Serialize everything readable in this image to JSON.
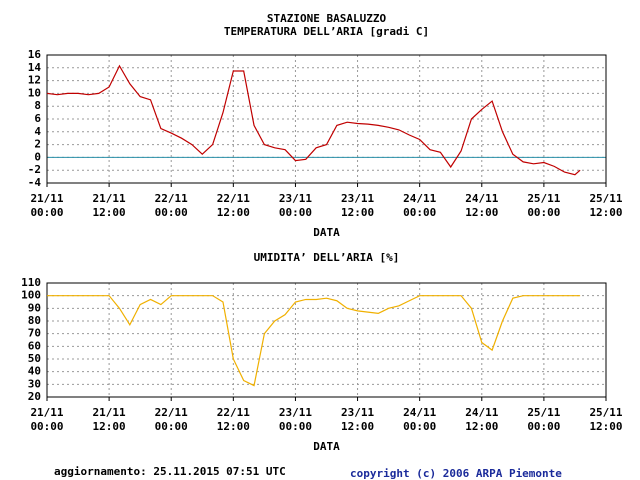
{
  "chart_data": [
    {
      "type": "line",
      "title": "STAZIONE BASALUZZO",
      "subtitle": "TEMPERATURA DELL’ARIA [gradi C]",
      "x_label": "DATA",
      "x": [
        "21/11 00:00",
        "21/11 02:00",
        "21/11 04:00",
        "21/11 06:00",
        "21/11 08:00",
        "21/11 10:00",
        "21/11 12:00",
        "21/11 14:00",
        "21/11 16:00",
        "21/11 18:00",
        "21/11 20:00",
        "21/11 22:00",
        "22/11 00:00",
        "22/11 02:00",
        "22/11 04:00",
        "22/11 06:00",
        "22/11 08:00",
        "22/11 10:00",
        "22/11 12:00",
        "22/11 14:00",
        "22/11 16:00",
        "22/11 18:00",
        "22/11 20:00",
        "22/11 22:00",
        "23/11 00:00",
        "23/11 02:00",
        "23/11 04:00",
        "23/11 06:00",
        "23/11 08:00",
        "23/11 10:00",
        "23/11 12:00",
        "23/11 14:00",
        "23/11 16:00",
        "23/11 18:00",
        "23/11 20:00",
        "23/11 22:00",
        "24/11 00:00",
        "24/11 02:00",
        "24/11 04:00",
        "24/11 06:00",
        "24/11 08:00",
        "24/11 10:00",
        "24/11 12:00",
        "24/11 14:00",
        "24/11 16:00",
        "24/11 18:00",
        "24/11 20:00",
        "24/11 22:00",
        "25/11 00:00",
        "25/11 02:00",
        "25/11 04:00",
        "25/11 06:00",
        "25/11 07:00"
      ],
      "series": [
        {
          "name": "TEMPERATURA DELL’ARIA",
          "color": "#c00000",
          "values": [
            10,
            9.8,
            10,
            10,
            9.8,
            10,
            11,
            14.3,
            11.5,
            9.5,
            9,
            4.5,
            3.8,
            3,
            2,
            0.5,
            2,
            7,
            13.5,
            13.5,
            5,
            2,
            1.5,
            1.2,
            -0.5,
            -0.3,
            1.5,
            2,
            5,
            5.5,
            5.3,
            5.2,
            5,
            4.7,
            4.3,
            3.5,
            2.8,
            1.2,
            0.8,
            -1.5,
            1,
            6,
            7.5,
            8.8,
            4,
            0.5,
            -0.7,
            -1,
            -0.8,
            -1.4,
            -2.3,
            -2.7,
            -2
          ]
        }
      ],
      "ylim": [
        -4,
        16
      ],
      "yticks": [
        -4,
        -2,
        0,
        2,
        4,
        6,
        8,
        10,
        12,
        14,
        16
      ],
      "xlim": [
        "21/11 00:00",
        "25/11 12:00"
      ],
      "xticks": [
        {
          "value": "21/11 00:00",
          "label": "21/11\n00:00"
        },
        {
          "value": "21/11 12:00",
          "label": "21/11\n12:00"
        },
        {
          "value": "22/11 00:00",
          "label": "22/11\n00:00"
        },
        {
          "value": "22/11 12:00",
          "label": "22/11\n12:00"
        },
        {
          "value": "23/11 00:00",
          "label": "23/11\n00:00"
        },
        {
          "value": "23/11 12:00",
          "label": "23/11\n12:00"
        },
        {
          "value": "24/11 00:00",
          "label": "24/11\n00:00"
        },
        {
          "value": "24/11 12:00",
          "label": "24/11\n12:00"
        },
        {
          "value": "25/11 00:00",
          "label": "25/11\n00:00"
        },
        {
          "value": "25/11 12:00",
          "label": "25/11\n12:00"
        }
      ],
      "grid": true,
      "reference_line": {
        "value": 0,
        "color": "#2a8fa8"
      }
    },
    {
      "type": "line",
      "title": "UMIDITA’ DELL’ARIA [%]",
      "x_label": "DATA",
      "x": [
        "21/11 00:00",
        "21/11 02:00",
        "21/11 04:00",
        "21/11 06:00",
        "21/11 08:00",
        "21/11 10:00",
        "21/11 12:00",
        "21/11 14:00",
        "21/11 16:00",
        "21/11 18:00",
        "21/11 20:00",
        "21/11 22:00",
        "22/11 00:00",
        "22/11 02:00",
        "22/11 04:00",
        "22/11 06:00",
        "22/11 08:00",
        "22/11 10:00",
        "22/11 12:00",
        "22/11 14:00",
        "22/11 16:00",
        "22/11 18:00",
        "22/11 20:00",
        "22/11 22:00",
        "23/11 00:00",
        "23/11 02:00",
        "23/11 04:00",
        "23/11 06:00",
        "23/11 08:00",
        "23/11 10:00",
        "23/11 12:00",
        "23/11 14:00",
        "23/11 16:00",
        "23/11 18:00",
        "23/11 20:00",
        "23/11 22:00",
        "24/11 00:00",
        "24/11 02:00",
        "24/11 04:00",
        "24/11 06:00",
        "24/11 08:00",
        "24/11 10:00",
        "24/11 12:00",
        "24/11 14:00",
        "24/11 16:00",
        "24/11 18:00",
        "24/11 20:00",
        "24/11 22:00",
        "25/11 00:00",
        "25/11 02:00",
        "25/11 04:00",
        "25/11 06:00",
        "25/11 07:00"
      ],
      "series": [
        {
          "name": "UMIDITA’ DELL’ARIA",
          "color": "#f0b000",
          "values": [
            100,
            100,
            100,
            100,
            100,
            100,
            100,
            90,
            77,
            93,
            97,
            93,
            100,
            100,
            100,
            100,
            100,
            95,
            50,
            33,
            29,
            70,
            80,
            85,
            95,
            97,
            97,
            98,
            96,
            90,
            88,
            87,
            86,
            90,
            92,
            96,
            100,
            100,
            100,
            100,
            100,
            90,
            63,
            57,
            80,
            98,
            100,
            100,
            100,
            100,
            100,
            100,
            100
          ]
        }
      ],
      "ylim": [
        20,
        110
      ],
      "yticks": [
        20,
        30,
        40,
        50,
        60,
        70,
        80,
        90,
        100,
        110
      ],
      "xlim": [
        "21/11 00:00",
        "25/11 12:00"
      ],
      "xticks": [
        {
          "value": "21/11 00:00",
          "label": "21/11\n00:00"
        },
        {
          "value": "21/11 12:00",
          "label": "21/11\n12:00"
        },
        {
          "value": "22/11 00:00",
          "label": "22/11\n00:00"
        },
        {
          "value": "22/11 12:00",
          "label": "22/11\n12:00"
        },
        {
          "value": "23/11 00:00",
          "label": "23/11\n00:00"
        },
        {
          "value": "23/11 12:00",
          "label": "23/11\n12:00"
        },
        {
          "value": "24/11 00:00",
          "label": "24/11\n00:00"
        },
        {
          "value": "24/11 12:00",
          "label": "24/11\n12:00"
        },
        {
          "value": "25/11 00:00",
          "label": "25/11\n00:00"
        },
        {
          "value": "25/11 12:00",
          "label": "25/11\n12:00"
        }
      ],
      "grid": true
    }
  ],
  "footer": {
    "updated": "aggiornamento: 25.11.2015 07:51 UTC",
    "copyright": "copyright (c) 2006 ARPA Piemonte"
  }
}
